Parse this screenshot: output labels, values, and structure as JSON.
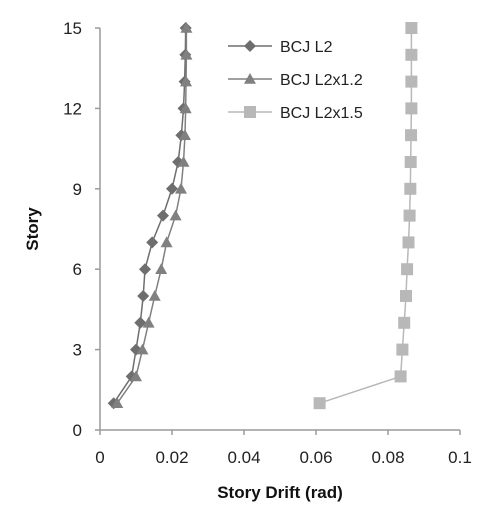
{
  "chart_data": {
    "type": "line",
    "xlabel": "Story Drift (rad)",
    "ylabel": "Story",
    "xlim": [
      0,
      0.1
    ],
    "ylim": [
      0,
      15
    ],
    "xticks": [
      0,
      0.02,
      0.04,
      0.06,
      0.08,
      0.1
    ],
    "xtick_labels": [
      "0",
      "0.02",
      "0.04",
      "0.06",
      "0.08",
      "0.1"
    ],
    "yticks": [
      0,
      3,
      6,
      9,
      12,
      15
    ],
    "ytick_labels": [
      "0",
      "3",
      "6",
      "9",
      "12",
      "15"
    ],
    "grid": false,
    "legend_position": "top-right",
    "series": [
      {
        "name": "BCJ L2",
        "marker": "diamond",
        "color": "#6e6e6e",
        "points": [
          [
            0.0038,
            1
          ],
          [
            0.0088,
            2
          ],
          [
            0.01,
            3
          ],
          [
            0.0112,
            4
          ],
          [
            0.012,
            5
          ],
          [
            0.0125,
            6
          ],
          [
            0.0145,
            7
          ],
          [
            0.0175,
            8
          ],
          [
            0.02,
            9
          ],
          [
            0.0217,
            10
          ],
          [
            0.0226,
            11
          ],
          [
            0.0232,
            12
          ],
          [
            0.0235,
            13
          ],
          [
            0.0237,
            14
          ],
          [
            0.0238,
            15
          ]
        ]
      },
      {
        "name": "BCJ L2x1.2",
        "marker": "triangle",
        "color": "#808080",
        "points": [
          [
            0.0048,
            1
          ],
          [
            0.01,
            2
          ],
          [
            0.0118,
            3
          ],
          [
            0.0135,
            4
          ],
          [
            0.0152,
            5
          ],
          [
            0.017,
            6
          ],
          [
            0.0185,
            7
          ],
          [
            0.021,
            8
          ],
          [
            0.0225,
            9
          ],
          [
            0.0232,
            10
          ],
          [
            0.0236,
            11
          ],
          [
            0.0238,
            12
          ],
          [
            0.0239,
            13
          ],
          [
            0.024,
            14
          ],
          [
            0.024,
            15
          ]
        ]
      },
      {
        "name": "BCJ L2x1.5",
        "marker": "square",
        "color": "#b8b8b8",
        "points": [
          [
            0.061,
            1
          ],
          [
            0.0835,
            2
          ],
          [
            0.084,
            3
          ],
          [
            0.0845,
            4
          ],
          [
            0.085,
            5
          ],
          [
            0.0853,
            6
          ],
          [
            0.0857,
            7
          ],
          [
            0.086,
            8
          ],
          [
            0.0862,
            9
          ],
          [
            0.0863,
            10
          ],
          [
            0.0864,
            11
          ],
          [
            0.0865,
            12
          ],
          [
            0.0865,
            13
          ],
          [
            0.0865,
            14
          ],
          [
            0.0865,
            15
          ]
        ]
      }
    ]
  }
}
